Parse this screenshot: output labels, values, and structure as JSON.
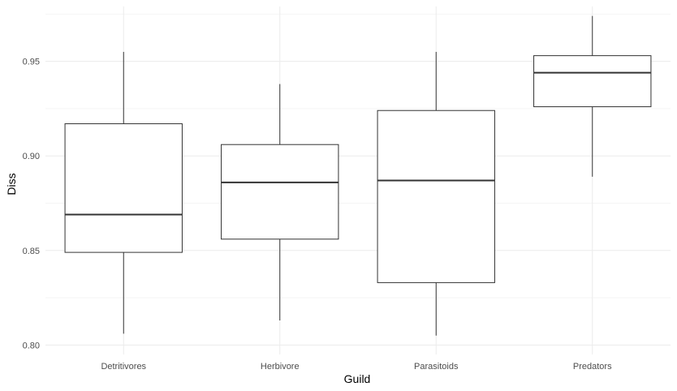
{
  "chart_data": {
    "type": "boxplot",
    "title": "",
    "xlabel": "Guild",
    "ylabel": "Diss",
    "ylim": [
      0.795,
      0.979
    ],
    "yticks": [
      0.8,
      0.85,
      0.9,
      0.95
    ],
    "ytick_labels": [
      "0.80",
      "0.85",
      "0.90",
      "0.95"
    ],
    "grid": true,
    "categories": [
      "Detritivores",
      "Herbivore",
      "Parasitoids",
      "Predators"
    ],
    "boxes": [
      {
        "category": "Detritivores",
        "whisker_low": 0.806,
        "q1": 0.849,
        "median": 0.869,
        "q3": 0.917,
        "whisker_high": 0.955
      },
      {
        "category": "Herbivore",
        "whisker_low": 0.813,
        "q1": 0.856,
        "median": 0.886,
        "q3": 0.906,
        "whisker_high": 0.938
      },
      {
        "category": "Parasitoids",
        "whisker_low": 0.805,
        "q1": 0.833,
        "median": 0.887,
        "q3": 0.924,
        "whisker_high": 0.955
      },
      {
        "category": "Predators",
        "whisker_low": 0.889,
        "q1": 0.926,
        "median": 0.944,
        "q3": 0.953,
        "whisker_high": 0.974
      }
    ]
  },
  "colors": {
    "background": "#ffffff",
    "grid_major": "#ebebeb",
    "grid_minor": "#f5f5f5",
    "box_stroke": "#333333",
    "box_fill": "#ffffff",
    "tick_text": "#4d4d4d",
    "axis_title": "#000000"
  }
}
